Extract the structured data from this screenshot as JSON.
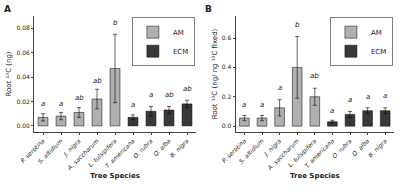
{
  "chart_data": [
    {
      "type": "bar",
      "title": "A",
      "categories": [
        "P. serotina",
        "S. altidium",
        "J. nigra",
        "A. saccharum",
        "L. tulsipifera",
        "T. americana",
        "O. rubra",
        "Q. alba",
        "B. nigra"
      ],
      "series": [
        {
          "name": "AM",
          "color": "#b0b0b0",
          "values": [
            0.007,
            0.008,
            0.011,
            0.022,
            0.047,
            null,
            null,
            null,
            null
          ],
          "errors": [
            0.003,
            0.003,
            0.004,
            0.008,
            0.028,
            null,
            null,
            null,
            null
          ]
        },
        {
          "name": "ECM",
          "color": "#383838",
          "values": [
            null,
            null,
            null,
            null,
            null,
            0.007,
            0.012,
            0.013,
            0.018
          ],
          "errors": [
            null,
            null,
            null,
            null,
            null,
            0.002,
            0.004,
            0.003,
            0.003
          ]
        }
      ],
      "xlabel": "Tree Species",
      "ylabel": "Root ¹³C (ng)",
      "ylim": [
        -0.005,
        0.09
      ],
      "yticks": [
        {
          "value": 0,
          "label": "0.00"
        },
        0.02,
        0.04,
        0.06,
        0.08
      ],
      "grid": false,
      "legend": "upper right",
      "annotations": [
        {
          "text": "a",
          "x": "P. serotina",
          "y": 0.013
        },
        {
          "text": "a",
          "x": "S. altidium",
          "y": 0.013
        },
        {
          "text": "ab",
          "x": "J. nigra",
          "y": 0.018
        },
        {
          "text": "ab",
          "x": "A. saccharum",
          "y": 0.032
        },
        {
          "text": "b",
          "x": "L. tulsipifera",
          "y": 0.079
        },
        {
          "text": "a",
          "x": "T. americana",
          "y": 0.012
        },
        {
          "text": "a",
          "x": "O. rubra",
          "y": 0.02
        },
        {
          "text": "ab",
          "x": "Q. alba",
          "y": 0.02
        },
        {
          "text": "ab",
          "x": "B. nigra",
          "y": 0.025
        }
      ]
    },
    {
      "type": "bar",
      "title": "B",
      "categories": [
        "P. serotina",
        "S. altidium",
        "J. nigra",
        "A. saccharum",
        "L. tulsipifera",
        "T. americana",
        "O. rubra",
        "Q. alba",
        "B. nigra"
      ],
      "series": [
        {
          "name": "AM",
          "color": "#b0b0b0",
          "values": [
            0.055,
            0.055,
            0.125,
            0.4,
            0.2,
            null,
            null,
            null,
            null
          ],
          "errors": [
            0.018,
            0.018,
            0.055,
            0.21,
            0.058,
            null,
            null,
            null,
            null
          ]
        },
        {
          "name": "ECM",
          "color": "#383838",
          "values": [
            null,
            null,
            null,
            null,
            null,
            0.03,
            0.08,
            0.105,
            0.105
          ],
          "errors": [
            null,
            null,
            null,
            null,
            null,
            0.01,
            0.02,
            0.02,
            0.02
          ]
        }
      ],
      "xlabel": "Tree Species",
      "ylabel": "Root ¹³C (ng/ ng ¹³C fixed)",
      "ylim": [
        -0.04,
        0.75
      ],
      "yticks": [
        {
          "value": 0,
          "label": "0.0"
        },
        0.2,
        0.4,
        0.6
      ],
      "grid": false,
      "legend": "upper right",
      "annotations": [
        {
          "text": "a",
          "x": "P. serotina",
          "y": 0.1
        },
        {
          "text": "a",
          "x": "S. altidium",
          "y": 0.1
        },
        {
          "text": "a",
          "x": "J. nigra",
          "y": 0.22
        },
        {
          "text": "b",
          "x": "A. saccharum",
          "y": 0.65
        },
        {
          "text": "ab",
          "x": "L. tulsipifera",
          "y": 0.3
        },
        {
          "text": "a",
          "x": "T. americana",
          "y": 0.065
        },
        {
          "text": "a",
          "x": "O. rubra",
          "y": 0.135
        },
        {
          "text": "a",
          "x": "Q. alba",
          "y": 0.16
        },
        {
          "text": "a",
          "x": "B. nigra",
          "y": 0.165
        }
      ]
    }
  ]
}
